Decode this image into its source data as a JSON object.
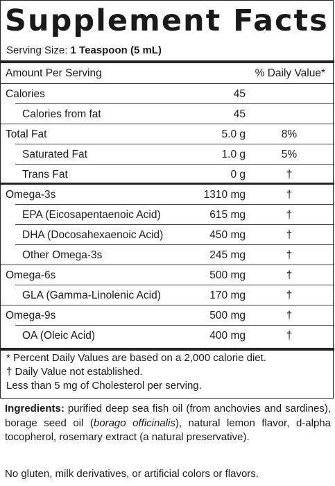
{
  "title": "Supplement Facts",
  "serving": {
    "label": "Serving Size:",
    "value": "1 Teaspoon (5 mL)"
  },
  "header": {
    "amount": "Amount Per Serving",
    "daily_value": "% Daily Value*"
  },
  "rows": [
    {
      "name": "Calories",
      "amount": "45",
      "dv": "",
      "indent": false
    },
    {
      "name": "Calories from fat",
      "amount": "45",
      "dv": "",
      "indent": true
    },
    {
      "name": "Total Fat",
      "amount": "5.0 g",
      "dv": "8%",
      "indent": false
    },
    {
      "name": "Saturated Fat",
      "amount": "1.0 g",
      "dv": "5%",
      "indent": true
    },
    {
      "name": "Trans Fat",
      "amount": "0 g",
      "dv": "†",
      "indent": true
    },
    {
      "name": "Omega-3s",
      "amount": "1310 mg",
      "dv": "†",
      "indent": false
    },
    {
      "name": "EPA (Eicosapentaenoic Acid)",
      "amount": "615 mg",
      "dv": "†",
      "indent": true
    },
    {
      "name": "DHA (Docosahexaenoic Acid)",
      "amount": "450 mg",
      "dv": "†",
      "indent": true
    },
    {
      "name": "Other Omega-3s",
      "amount": "245 mg",
      "dv": "†",
      "indent": true
    },
    {
      "name": "Omega-6s",
      "amount": "500 mg",
      "dv": "†",
      "indent": false
    },
    {
      "name": "GLA (Gamma-Linolenic Acid)",
      "amount": "170 mg",
      "dv": "†",
      "indent": true
    },
    {
      "name": "Omega-9s",
      "amount": "500 mg",
      "dv": "†",
      "indent": false
    },
    {
      "name": "OA (Oleic Acid)",
      "amount": "400 mg",
      "dv": "†",
      "indent": true
    }
  ],
  "footnotes": [
    "*  Percent Daily Values are based on a 2,000 calorie diet.",
    "†  Daily Value not established.",
    "Less than 5 mg of Cholesterol per serving."
  ],
  "ingredients": {
    "label": "Ingredients:",
    "text_1": " purified deep sea fish oil (from anchovies and sardines), borage seed oil (",
    "text_italic": "borago officinalis",
    "text_2": "), natural lemon flavor, d-alpha tocopherol, rosemary extract (a natural preservative)."
  },
  "free_from": "No gluten, milk derivatives, or artificial colors or flavors."
}
